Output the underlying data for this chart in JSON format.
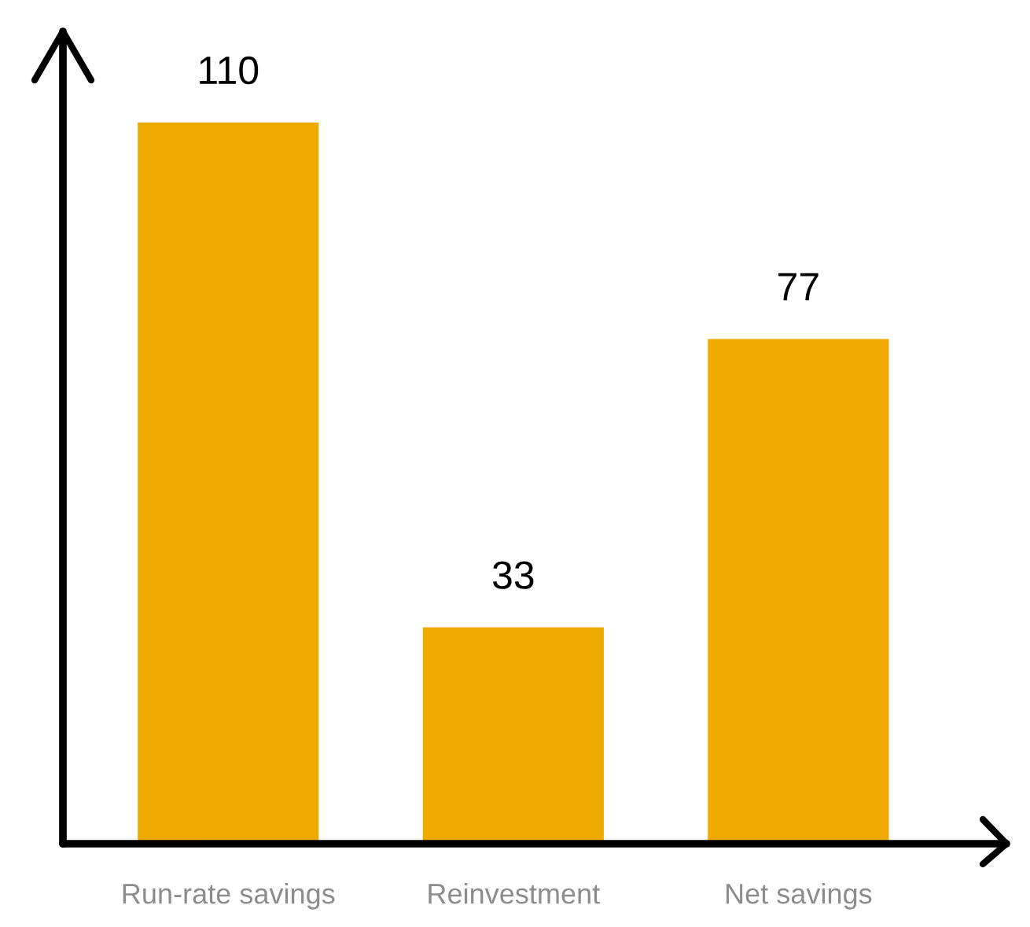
{
  "chart_data": {
    "type": "bar",
    "categories": [
      "Run-rate savings",
      "Reinvestment",
      "Net savings"
    ],
    "values": [
      110,
      33,
      77
    ],
    "color": "#efaa00",
    "data_labels": true,
    "grid": false,
    "tick_labels": "x"
  }
}
